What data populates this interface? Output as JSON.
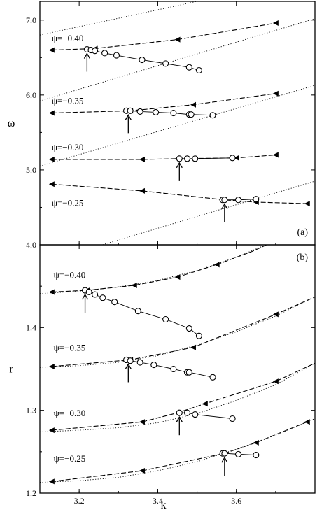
{
  "chart_data": [
    {
      "type": "line",
      "panel_label": "(a)",
      "xlabel": "",
      "ylabel": "ω",
      "xlim": [
        3.1,
        3.8
      ],
      "ylim": [
        4.0,
        7.25
      ],
      "x_ticks": [
        3.2,
        3.4,
        3.6
      ],
      "y_ticks": [
        4.0,
        5.0,
        6.0,
        7.0
      ],
      "y_tick_labels": [
        "4.0",
        "5.0",
        "6.0",
        "7.0"
      ],
      "dotted_lines": [
        {
          "x": [
            3.1,
            3.8
          ],
          "y": [
            3.75,
            4.85
          ]
        },
        {
          "x": [
            3.1,
            3.8
          ],
          "y": [
            5.05,
            6.13
          ]
        },
        {
          "x": [
            3.1,
            3.8
          ],
          "y": [
            5.92,
            7.02
          ]
        },
        {
          "x": [
            3.1,
            3.5
          ],
          "y": [
            6.8,
            7.25
          ]
        }
      ],
      "groups": [
        {
          "label": "ψ=−0.40",
          "label_pos": [
            3.13,
            6.72
          ],
          "dashed_x": [
            3.13,
            3.24,
            3.45,
            3.7
          ],
          "dashed_y": [
            6.6,
            6.62,
            6.74,
            6.96
          ],
          "triangles_x": [
            3.13,
            3.24,
            3.45,
            3.7
          ],
          "triangles_y": [
            6.6,
            6.62,
            6.74,
            6.96
          ],
          "circles_x": [
            3.22,
            3.23,
            3.24,
            3.265,
            3.295,
            3.36,
            3.42,
            3.48,
            3.505
          ],
          "circles_y": [
            6.61,
            6.6,
            6.59,
            6.56,
            6.53,
            6.47,
            6.42,
            6.37,
            6.33
          ],
          "arrow_x": 3.22,
          "arrow_y": 6.61
        },
        {
          "label": "ψ=−0.35",
          "label_pos": [
            3.13,
            5.88
          ],
          "dashed_x": [
            3.13,
            3.33,
            3.49,
            3.7
          ],
          "dashed_y": [
            5.76,
            5.79,
            5.87,
            6.02
          ],
          "triangles_x": [
            3.13,
            3.33,
            3.49,
            3.7
          ],
          "triangles_y": [
            5.76,
            5.79,
            5.87,
            6.02
          ],
          "circles_x": [
            3.32,
            3.33,
            3.355,
            3.395,
            3.44,
            3.48,
            3.485,
            3.54
          ],
          "circles_y": [
            5.79,
            5.79,
            5.78,
            5.77,
            5.76,
            5.74,
            5.74,
            5.73
          ],
          "arrow_x": 3.325,
          "arrow_y": 5.79
        },
        {
          "label": "ψ=−0.30",
          "label_pos": [
            3.13,
            5.26
          ],
          "dashed_x": [
            3.13,
            3.36,
            3.45,
            3.6,
            3.7
          ],
          "dashed_y": [
            5.14,
            5.14,
            5.15,
            5.16,
            5.2
          ],
          "triangles_x": [
            3.13,
            3.36,
            3.45,
            3.6,
            3.7
          ],
          "triangles_y": [
            5.14,
            5.14,
            5.15,
            5.16,
            5.2
          ],
          "circles_x": [
            3.455,
            3.475,
            3.495,
            3.59
          ],
          "circles_y": [
            5.15,
            5.15,
            5.15,
            5.16
          ],
          "arrow_x": 3.455,
          "arrow_y": 5.15
        },
        {
          "label": "ψ=−0.25",
          "label_pos": [
            3.13,
            4.52
          ],
          "dashed_x": [
            3.13,
            3.36,
            3.57,
            3.65,
            3.78
          ],
          "dashed_y": [
            4.81,
            4.72,
            4.6,
            4.57,
            4.55
          ],
          "triangles_x": [
            3.13,
            3.36,
            3.57,
            3.65,
            3.78
          ],
          "triangles_y": [
            4.81,
            4.72,
            4.6,
            4.57,
            4.55
          ],
          "circles_x": [
            3.565,
            3.57,
            3.605,
            3.65
          ],
          "circles_y": [
            4.6,
            4.6,
            4.6,
            4.61
          ],
          "arrow_x": 3.57,
          "arrow_y": 4.6
        }
      ]
    },
    {
      "type": "line",
      "panel_label": "(b)",
      "xlabel": "k",
      "ylabel": "r",
      "xlim": [
        3.1,
        3.8
      ],
      "ylim": [
        1.2,
        1.5
      ],
      "x_ticks": [
        3.2,
        3.4,
        3.6
      ],
      "x_tick_labels": [
        "3.2",
        "3.4",
        "3.6"
      ],
      "y_ticks": [
        1.2,
        1.3,
        1.4
      ],
      "y_tick_labels": [
        "1.2",
        "1.3",
        "1.4"
      ],
      "dotted_lines": [
        {
          "x": [
            3.1,
            3.2,
            3.3,
            3.4,
            3.5,
            3.6,
            3.7
          ],
          "y": [
            1.441,
            1.444,
            1.449,
            1.457,
            1.469,
            1.485,
            1.505
          ]
        },
        {
          "x": [
            3.1,
            3.2,
            3.3,
            3.4,
            3.5,
            3.6,
            3.7,
            3.8
          ],
          "y": [
            1.352,
            1.354,
            1.358,
            1.366,
            1.379,
            1.395,
            1.414,
            1.437
          ]
        },
        {
          "x": [
            3.1,
            3.2,
            3.3,
            3.4,
            3.5,
            3.6,
            3.7,
            3.8
          ],
          "y": [
            1.274,
            1.276,
            1.279,
            1.285,
            1.296,
            1.312,
            1.331,
            1.357
          ]
        },
        {
          "x": [
            3.1,
            3.2,
            3.3,
            3.4,
            3.5,
            3.6,
            3.7,
            3.8
          ],
          "y": [
            1.213,
            1.215,
            1.219,
            1.227,
            1.238,
            1.253,
            1.27,
            1.29
          ]
        }
      ],
      "groups": [
        {
          "label": "ψ=−0.40",
          "label_pos": [
            3.135,
            1.46
          ],
          "dashed_x": [
            3.13,
            3.22,
            3.34,
            3.45,
            3.55,
            3.64,
            3.7
          ],
          "dashed_y": [
            1.443,
            1.445,
            1.451,
            1.461,
            1.476,
            1.492,
            1.505
          ],
          "triangles_x": [
            3.13,
            3.22,
            3.34,
            3.45,
            3.55
          ],
          "triangles_y": [
            1.443,
            1.445,
            1.451,
            1.461,
            1.476
          ],
          "circles_x": [
            3.215,
            3.225,
            3.24,
            3.26,
            3.29,
            3.35,
            3.42,
            3.48,
            3.505
          ],
          "circles_y": [
            1.445,
            1.443,
            1.44,
            1.436,
            1.431,
            1.42,
            1.41,
            1.399,
            1.39
          ],
          "arrow_x": 3.215,
          "arrow_y": 1.445
        },
        {
          "label": "ψ=−0.35",
          "label_pos": [
            3.135,
            1.372
          ],
          "dashed_x": [
            3.13,
            3.33,
            3.49,
            3.7,
            3.8
          ],
          "dashed_y": [
            1.353,
            1.361,
            1.376,
            1.416,
            1.437
          ],
          "triangles_x": [
            3.13,
            3.33,
            3.49,
            3.7
          ],
          "triangles_y": [
            1.353,
            1.361,
            1.376,
            1.416
          ],
          "circles_x": [
            3.32,
            3.33,
            3.355,
            3.39,
            3.44,
            3.475,
            3.48,
            3.54
          ],
          "circles_y": [
            1.361,
            1.36,
            1.358,
            1.355,
            1.35,
            1.346,
            1.346,
            1.34
          ],
          "arrow_x": 3.325,
          "arrow_y": 1.361
        },
        {
          "label": "ψ=−0.30",
          "label_pos": [
            3.135,
            1.293
          ],
          "dashed_x": [
            3.13,
            3.36,
            3.45,
            3.52,
            3.7,
            3.8
          ],
          "dashed_y": [
            1.276,
            1.286,
            1.297,
            1.308,
            1.335,
            1.357
          ],
          "triangles_x": [
            3.13,
            3.36,
            3.52,
            3.7
          ],
          "triangles_y": [
            1.276,
            1.286,
            1.308,
            1.335
          ],
          "circles_x": [
            3.455,
            3.475,
            3.495,
            3.59
          ],
          "circles_y": [
            1.297,
            1.297,
            1.295,
            1.29
          ],
          "arrow_x": 3.455,
          "arrow_y": 1.297
        },
        {
          "label": "ψ=−0.25",
          "label_pos": [
            3.135,
            1.238
          ],
          "dashed_x": [
            3.13,
            3.36,
            3.57,
            3.65,
            3.78
          ],
          "dashed_y": [
            1.214,
            1.227,
            1.248,
            1.261,
            1.286
          ],
          "triangles_x": [
            3.13,
            3.36,
            3.57,
            3.65,
            3.78
          ],
          "triangles_y": [
            1.214,
            1.227,
            1.248,
            1.261,
            1.286
          ],
          "circles_x": [
            3.565,
            3.57,
            3.605,
            3.65
          ],
          "circles_y": [
            1.248,
            1.248,
            1.247,
            1.246
          ],
          "arrow_x": 3.57,
          "arrow_y": 1.248
        }
      ]
    }
  ]
}
